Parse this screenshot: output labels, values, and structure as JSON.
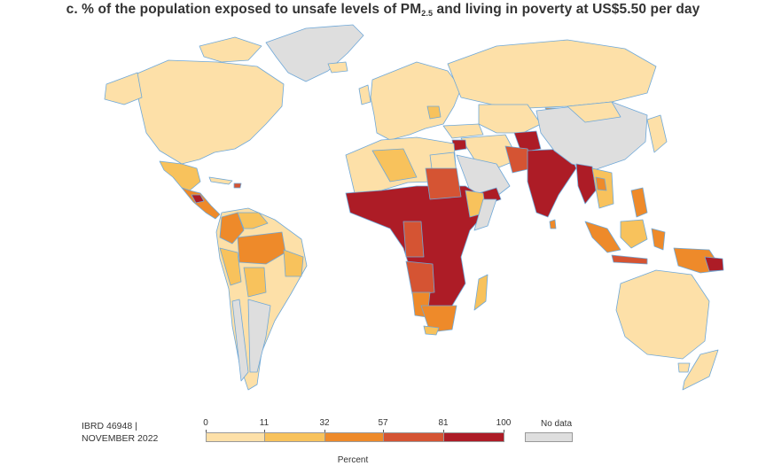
{
  "title": {
    "prefix": "c. % of the population exposed to unsafe levels of PM",
    "subscript": "2.5",
    "suffix": " and living in poverty at US$5.50 per day"
  },
  "reference": {
    "line1": "IBRD 46948 |",
    "line2": "NOVEMBER 2022"
  },
  "legend": {
    "title": "Percent",
    "ticks": [
      "0",
      "11",
      "32",
      "57",
      "81",
      "100"
    ],
    "colors": [
      "#fde0a8",
      "#f8c25c",
      "#ee8a2a",
      "#d55433",
      "#ad1c26"
    ],
    "no_data_label": "No data",
    "no_data_color": "#dedede"
  },
  "colors": {
    "ocean": "#ffffff",
    "coast": "#6fa8d8",
    "borders": "#ffffff"
  }
}
